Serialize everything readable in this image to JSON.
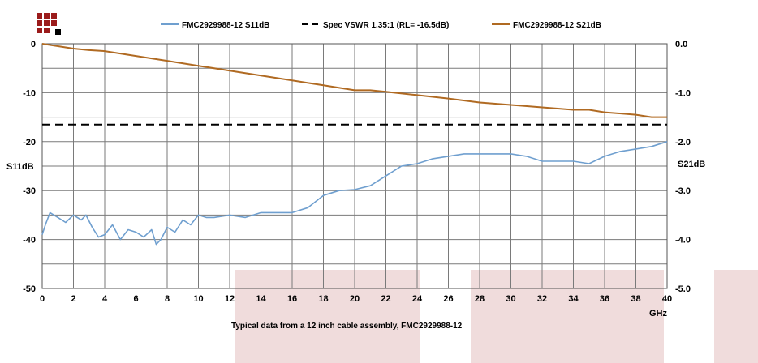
{
  "colors": {
    "s11": "#6f9fcf",
    "spec": "#000000",
    "s21": "#b06a22",
    "grid": "#7a7a7a",
    "watermark": "#f0dcdc",
    "logo": "#9b1b1b"
  },
  "chart_data": {
    "type": "line",
    "legend": [
      {
        "name": "FMC2929988-12 S11dB",
        "color": "#6f9fcf",
        "style": "solid"
      },
      {
        "name": "Spec VSWR 1.35:1 (RL= -16.5dB)",
        "color": "#000000",
        "style": "dashed"
      },
      {
        "name": "FMC2929988-12 S21dB",
        "color": "#b06a22",
        "style": "solid"
      }
    ],
    "legend_placement": "top",
    "xlabel": "GHz",
    "ylabel_left": "S11dB",
    "ylabel_right": "S21dB",
    "caption": "Typical data from a  12 inch cable assembly,  FMC2929988-12",
    "xlim": [
      0,
      40
    ],
    "ylim_left": [
      -50,
      0
    ],
    "ylim_right": [
      -5.0,
      0.0
    ],
    "grid": true,
    "x_ticks": [
      "0",
      "2",
      "4",
      "6",
      "8",
      "10",
      "12",
      "14",
      "16",
      "18",
      "20",
      "22",
      "24",
      "26",
      "28",
      "30",
      "32",
      "34",
      "36",
      "38",
      "40"
    ],
    "y_left_ticks": [
      "0",
      "-10",
      "-20",
      "-30",
      "-40",
      "-50"
    ],
    "y_right_ticks": [
      "0.0",
      "-1.0",
      "-2.0",
      "-3.0",
      "-4.0",
      "-5.0"
    ],
    "series": [
      {
        "name": "FMC2929988-12 S11dB",
        "axis": "left",
        "x": [
          0,
          0.2,
          0.5,
          1,
          1.5,
          2,
          2.5,
          2.8,
          3.2,
          3.6,
          4,
          4.5,
          5,
          5.5,
          6,
          6.5,
          7,
          7.3,
          7.6,
          8,
          8.5,
          9,
          9.5,
          10,
          10.5,
          11,
          12,
          13,
          14,
          15,
          16,
          17,
          18,
          19,
          20,
          21,
          22,
          23,
          24,
          25,
          26,
          27,
          28,
          29,
          30,
          31,
          32,
          33,
          34,
          35,
          36,
          37,
          38,
          39,
          40
        ],
        "y": [
          -39,
          -37,
          -34.5,
          -35.5,
          -36.5,
          -35,
          -36,
          -35,
          -37.5,
          -39.5,
          -39,
          -37,
          -40,
          -38,
          -38.5,
          -39.5,
          -38,
          -41,
          -40,
          -37.5,
          -38.5,
          -36,
          -37,
          -35,
          -35.5,
          -35.5,
          -35,
          -35.5,
          -34.5,
          -34.5,
          -34.5,
          -33.5,
          -31,
          -30,
          -29.8,
          -29,
          -27,
          -25,
          -24.5,
          -23.5,
          -23,
          -22.5,
          -22.5,
          -22.5,
          -22.5,
          -23,
          -24,
          -24,
          -24,
          -24.5,
          -23,
          -22,
          -21.5,
          -21,
          -20
        ]
      },
      {
        "name": "Spec VSWR 1.35:1 (RL= -16.5dB)",
        "axis": "left",
        "x": [
          0,
          40
        ],
        "y": [
          -16.5,
          -16.5
        ]
      },
      {
        "name": "FMC2929988-12 S21dB",
        "axis": "right",
        "x": [
          0,
          1,
          2,
          3,
          4,
          6,
          8,
          10,
          12,
          14,
          16,
          18,
          20,
          21,
          22,
          24,
          26,
          28,
          30,
          32,
          34,
          35,
          36,
          38,
          39,
          40
        ],
        "y": [
          0.0,
          -0.05,
          -0.1,
          -0.13,
          -0.15,
          -0.25,
          -0.35,
          -0.45,
          -0.55,
          -0.65,
          -0.75,
          -0.85,
          -0.95,
          -0.95,
          -0.98,
          -1.05,
          -1.12,
          -1.2,
          -1.25,
          -1.3,
          -1.35,
          -1.35,
          -1.4,
          -1.45,
          -1.5,
          -1.5
        ]
      }
    ]
  }
}
